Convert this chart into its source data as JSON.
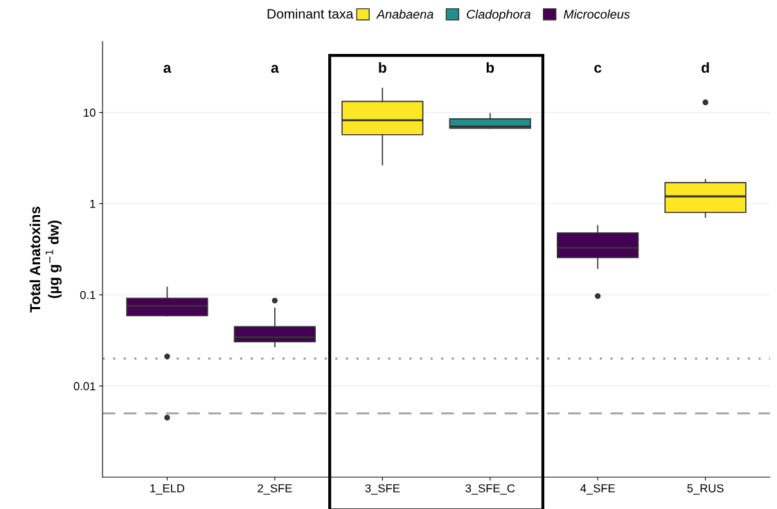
{
  "chart_data": {
    "type": "box",
    "ylabel": "Total Anatoxins\n(µg g$^{−1}$ dw)",
    "legend_title": "Dominant taxa",
    "categories": [
      "1_ELD",
      "2_SFE",
      "3_SFE",
      "3_SFE_C",
      "4_SFE",
      "5_RUS"
    ],
    "series": [
      {
        "name": "Anabaena",
        "color": "#fde725",
        "boxes": [
          null,
          null,
          {
            "low": 2.67,
            "q1": 5.7,
            "median": 8.2,
            "q3": 13.2,
            "high": 18.4
          },
          null,
          null,
          {
            "low": 0.71,
            "q1": 0.8,
            "median": 1.2,
            "q3": 1.7,
            "high": 1.84,
            "outliers": [
              12.9
            ]
          }
        ]
      },
      {
        "name": "Cladophora",
        "color": "#21908d",
        "boxes": [
          null,
          null,
          null,
          {
            "low": 6.7,
            "q1": 6.7,
            "median": 7.0,
            "q3": 8.5,
            "high": 9.7
          },
          null,
          null
        ]
      },
      {
        "name": "Microcoleus",
        "color": "#440154",
        "boxes": [
          {
            "low": 0.059,
            "q1": 0.059,
            "median": 0.0755,
            "q3": 0.0915,
            "high": 0.121,
            "outliers": [
              0.0211,
              0.0045
            ]
          },
          {
            "low": 0.027,
            "q1": 0.0306,
            "median": 0.0342,
            "q3": 0.0448,
            "high": 0.0713,
            "outliers": [
              0.0865
            ]
          },
          null,
          null,
          {
            "low": 0.195,
            "q1": 0.256,
            "median": 0.328,
            "q3": 0.477,
            "high": 0.574,
            "outliers": [
              0.0968
            ]
          },
          null
        ]
      }
    ],
    "log": "y",
    "ylim": [
      0.001,
      60
    ],
    "yticks": [
      0.01,
      0.1,
      1,
      10
    ],
    "grid": "y",
    "legend": "top",
    "ref_lines": [
      {
        "axis": "y",
        "value": 0.02,
        "color": "#999999",
        "line_style": "dotted"
      },
      {
        "axis": "y",
        "value": 0.005,
        "color": "#aaaaaa",
        "line_style": "dashed"
      }
    ],
    "annotations": [
      "a",
      "a",
      "b",
      "b",
      "c",
      "d"
    ]
  }
}
